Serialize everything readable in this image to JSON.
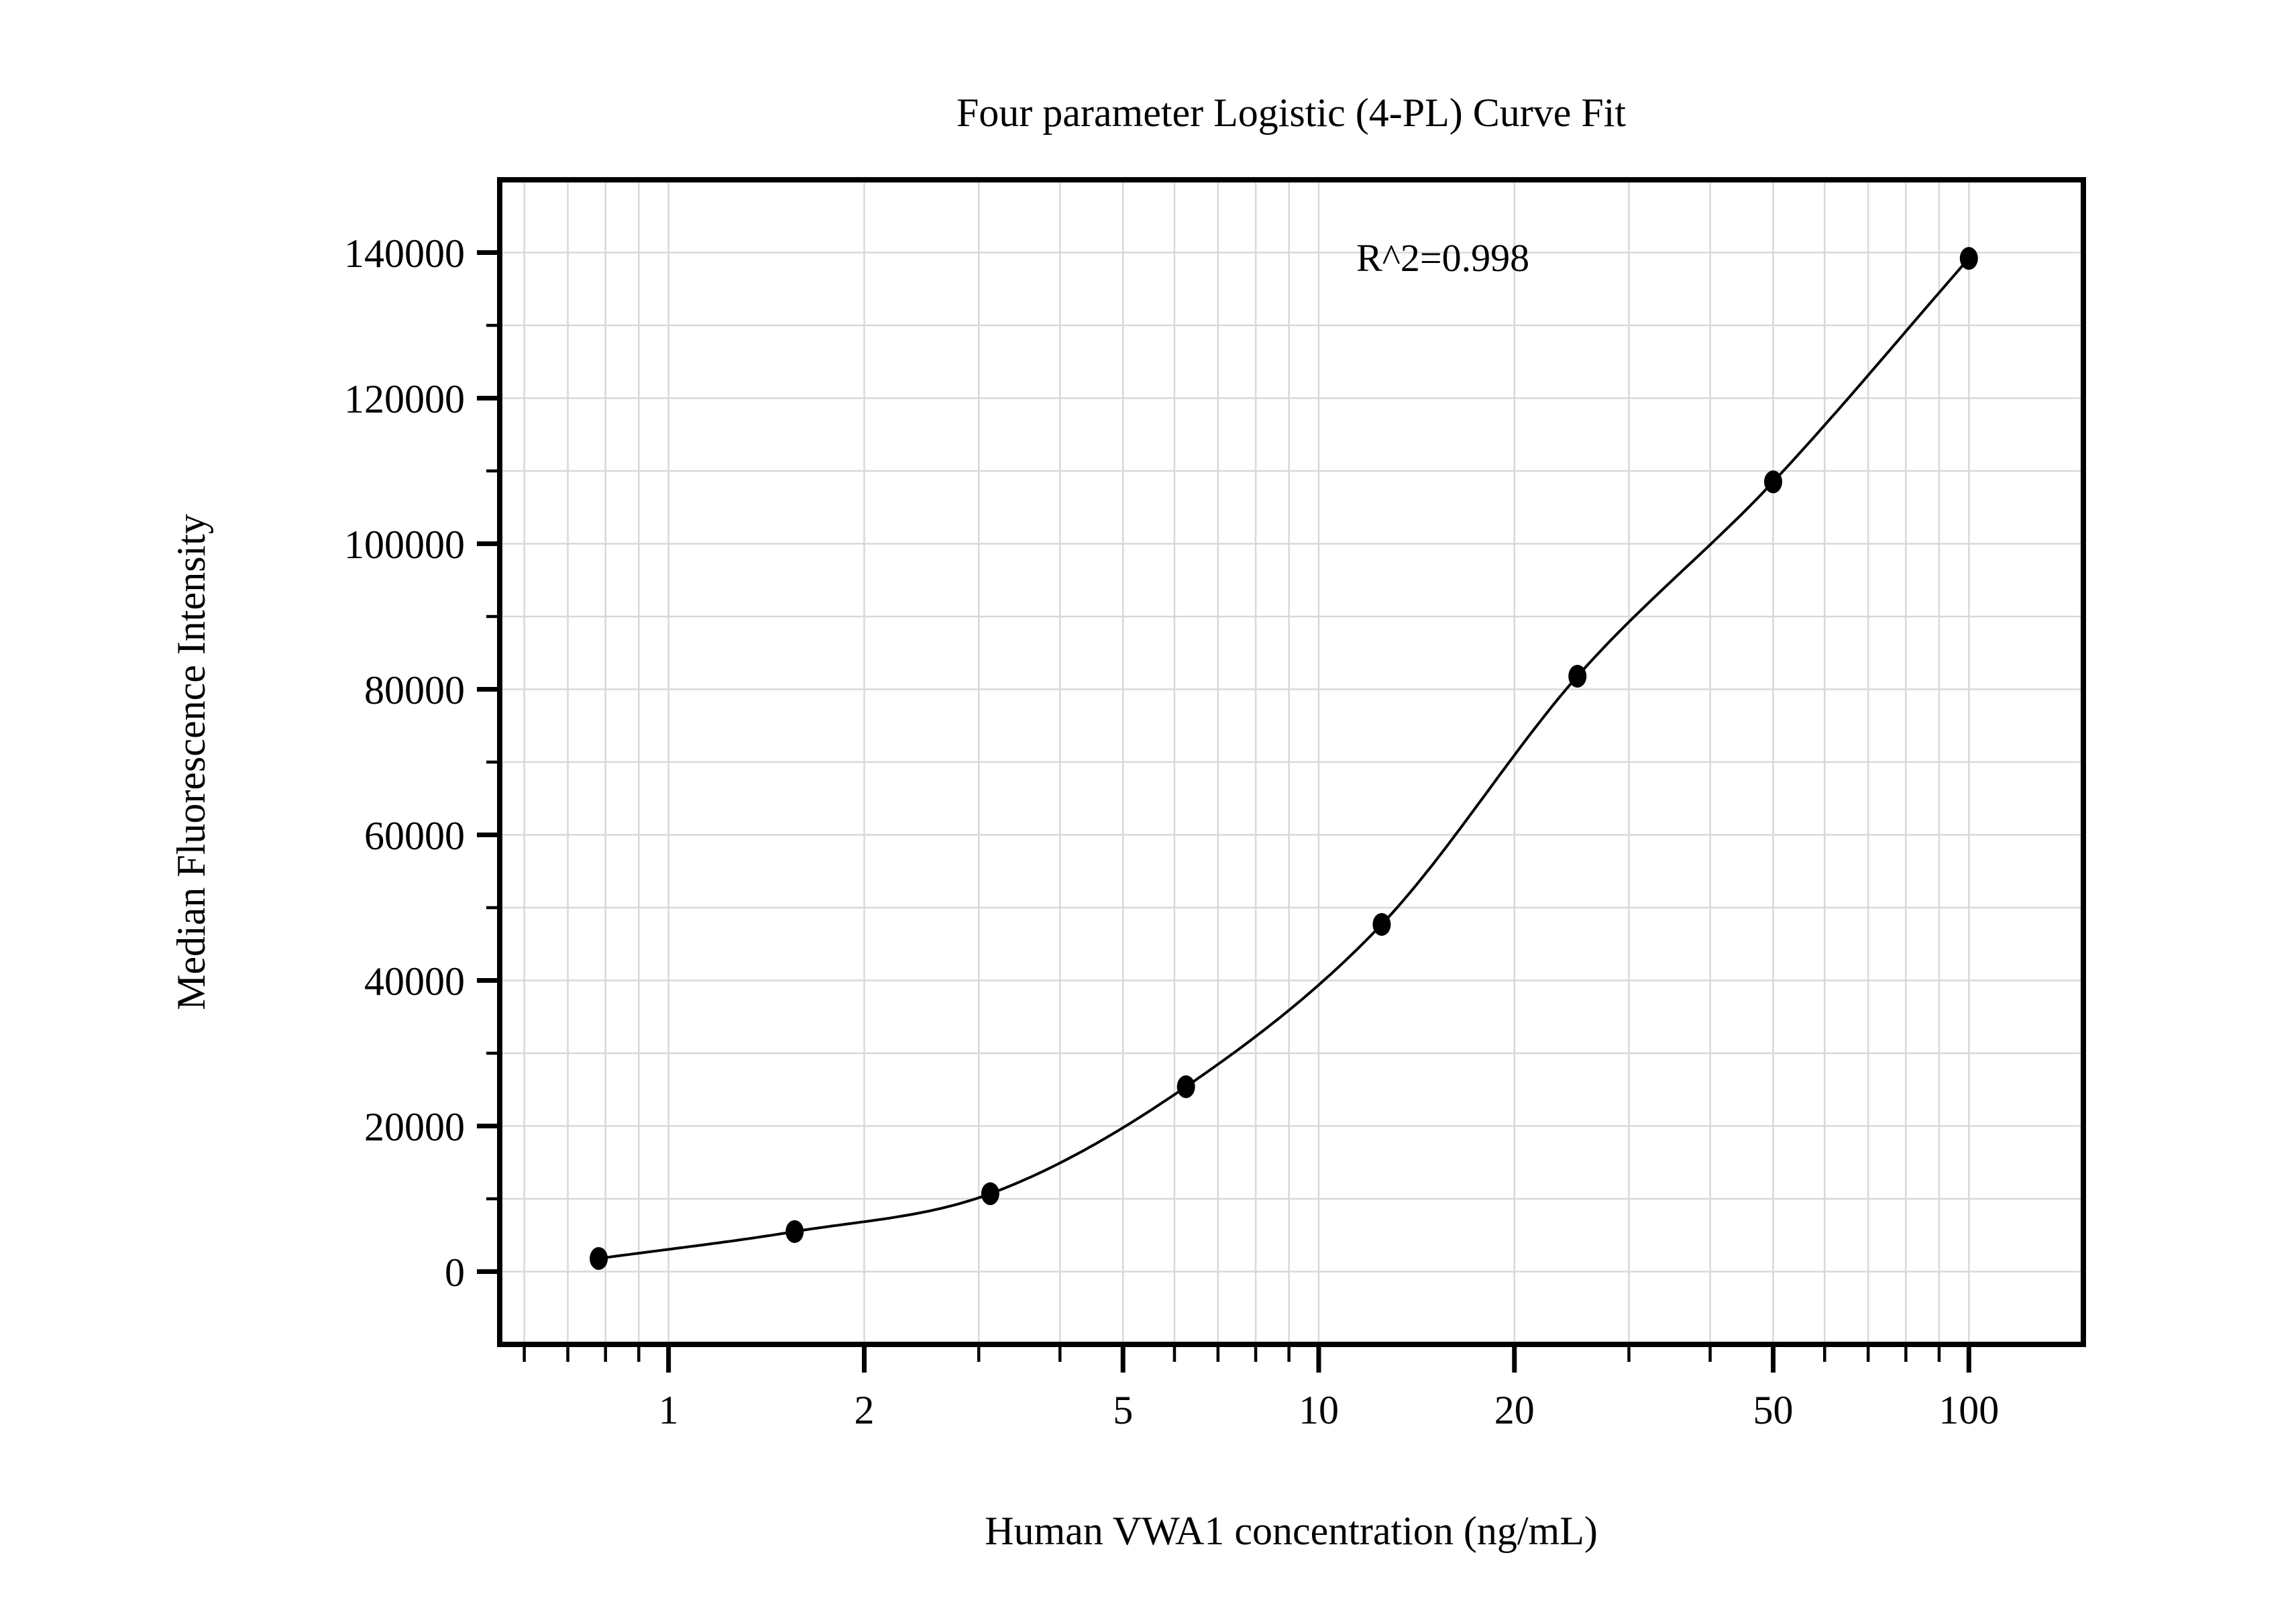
{
  "chart": {
    "background_color": "#ffffff",
    "frame_color": "#000000",
    "grid_color": "#d8d8d8",
    "marker_color": "#000000",
    "curve_color": "#000000",
    "grid_visible": true,
    "legend": "none"
  },
  "chart_data": {
    "type": "scatter",
    "title": "Four parameter Logistic (4-PL) Curve Fit",
    "annotation": "R^2=0.998",
    "xlabel": "Human VWA1 concentration (ng/mL)",
    "ylabel": "Median Fluorescence Intensity",
    "x_scale": "log",
    "y_scale": "linear",
    "xlim": [
      0.55,
      150
    ],
    "ylim": [
      -10000,
      150000
    ],
    "x_major_ticks": [
      1,
      2,
      5,
      10,
      20,
      50,
      100
    ],
    "x_tick_labels": [
      "1",
      "2",
      "5",
      "10",
      "20",
      "50",
      "100"
    ],
    "x_minor_ticks": [
      0.6,
      0.7,
      0.8,
      0.9,
      3,
      4,
      6,
      7,
      8,
      9,
      30,
      40,
      60,
      70,
      80,
      90
    ],
    "y_major_ticks": [
      0,
      20000,
      40000,
      60000,
      80000,
      100000,
      120000,
      140000
    ],
    "y_tick_labels": [
      "0",
      "20000",
      "40000",
      "60000",
      "80000",
      "100000",
      "120000",
      "140000"
    ],
    "y_minor_ticks": [
      10000,
      30000,
      50000,
      70000,
      90000,
      110000,
      130000
    ],
    "grid": true,
    "series": [
      {
        "name": "standard-curve-points",
        "marker": "filled-circle",
        "fit": "4-PL",
        "x": [
          0.781,
          1.563,
          3.125,
          6.25,
          12.5,
          25,
          50,
          100
        ],
        "y": [
          1800,
          5500,
          10700,
          25400,
          47700,
          81800,
          108500,
          139200
        ]
      }
    ]
  }
}
